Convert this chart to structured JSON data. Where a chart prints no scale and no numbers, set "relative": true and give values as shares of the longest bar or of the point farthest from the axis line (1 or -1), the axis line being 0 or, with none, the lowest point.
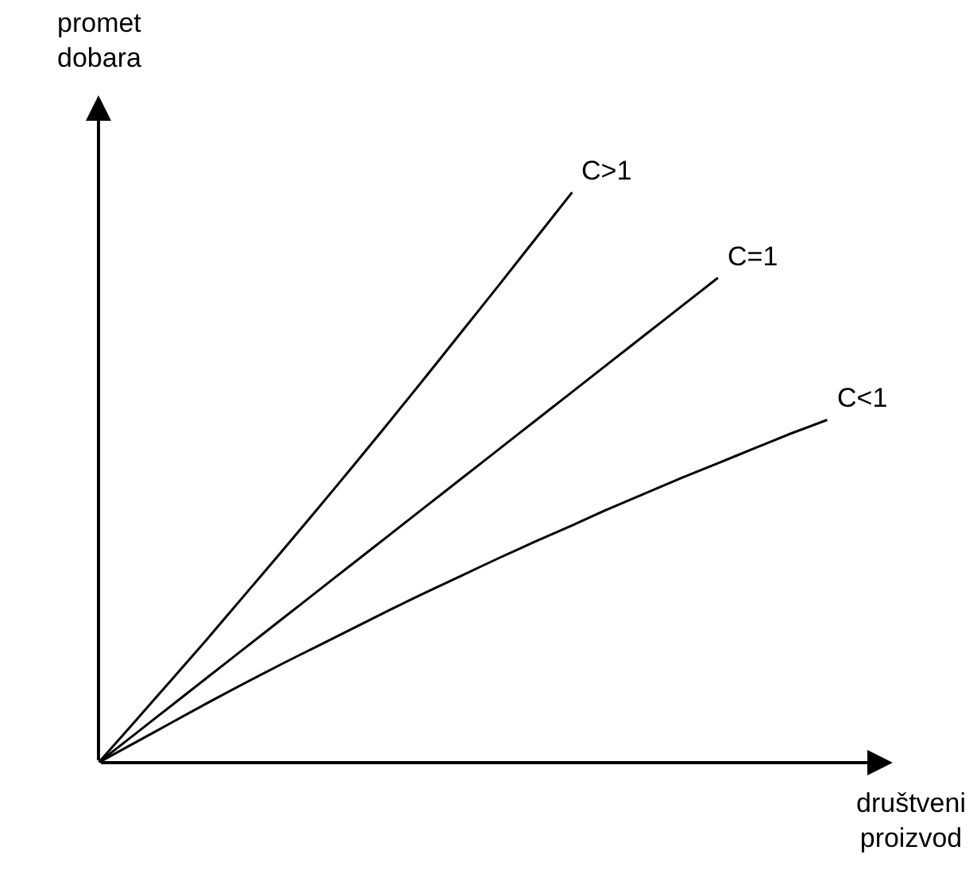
{
  "chart_data": {
    "type": "line",
    "relative": true,
    "xlabel": "društveni\nproizvod",
    "ylabel": "promet\ndobara",
    "categories": [
      null,
      null,
      null,
      null,
      null,
      null,
      null,
      null,
      null,
      null,
      null,
      null,
      null,
      null,
      null,
      null,
      null,
      null,
      null,
      null,
      null
    ],
    "series": [
      {
        "name": "C>1",
        "color": "#000000",
        "values": [
          0,
          0.072,
          0.145,
          0.218,
          0.293,
          0.368,
          0.444,
          0.521,
          0.599,
          0.678,
          0.758,
          0.838,
          0.919,
          1.0,
          null,
          null,
          null,
          null,
          null,
          null,
          null
        ]
      },
      {
        "name": "C=1",
        "color": "#000000",
        "values": [
          0,
          0.05,
          0.1,
          0.15,
          0.2,
          0.25,
          0.3,
          0.35,
          0.4,
          0.45,
          0.5,
          0.55,
          0.6,
          0.65,
          0.7,
          0.75,
          0.8,
          0.85,
          null,
          null,
          null
        ]
      },
      {
        "name": "C<1",
        "color": "#000000",
        "values": [
          0,
          0.035,
          0.07,
          0.105,
          0.139,
          0.172,
          0.204,
          0.236,
          0.268,
          0.299,
          0.329,
          0.359,
          0.388,
          0.416,
          0.445,
          0.472,
          0.499,
          0.525,
          0.551,
          0.577,
          0.601
        ]
      }
    ],
    "legend": false,
    "marker": "none",
    "line_style": "solid"
  }
}
